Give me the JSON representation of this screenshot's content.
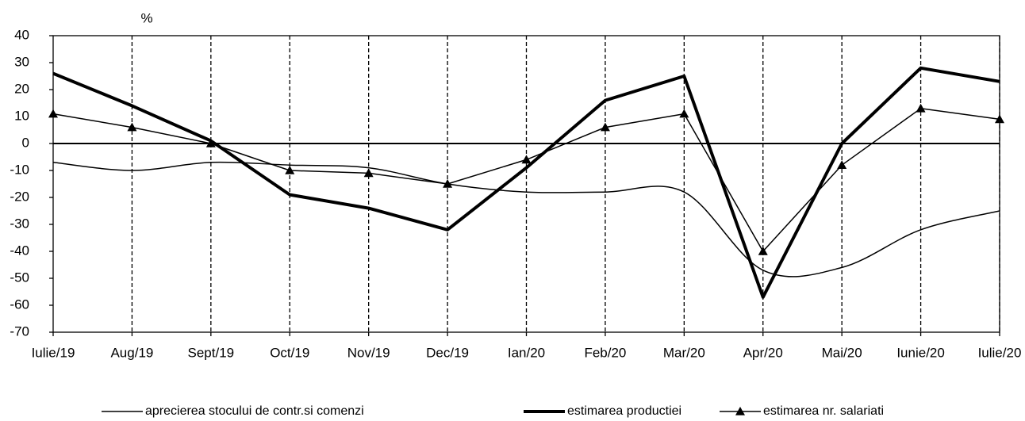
{
  "chart_data": {
    "type": "line",
    "y_label": "%",
    "categories": [
      "Iulie/19",
      "Aug/19",
      "Sept/19",
      "Oct/19",
      "Nov/19",
      "Dec/19",
      "Ian/20",
      "Feb/20",
      "Mar/20",
      "Apr/20",
      "Mai/20",
      "Iunie/20",
      "Iulie/20"
    ],
    "series": [
      {
        "name": "aprecierea stocului de contr.si comenzi",
        "color": "#000000",
        "smooth": true,
        "values": [
          -7,
          -10,
          -7,
          -8,
          -9,
          -15,
          -18,
          -18,
          -18,
          -47,
          -46,
          -32,
          -25
        ]
      },
      {
        "name": "estimarea productiei",
        "color": "#000000",
        "values": [
          26,
          14,
          1,
          -19,
          -24,
          -32,
          -9,
          16,
          25,
          -57,
          0,
          28,
          23
        ]
      },
      {
        "name": "estimarea nr. salariati",
        "color": "#000000",
        "marker": "triangle",
        "values": [
          11,
          6,
          0,
          -10,
          -11,
          -15,
          -6,
          6,
          11,
          -40,
          -8,
          13,
          9
        ]
      }
    ],
    "ylim": [
      -70,
      40
    ],
    "yticks": [
      -70,
      -60,
      -50,
      -40,
      -30,
      -20,
      -10,
      0,
      10,
      20,
      30,
      40
    ],
    "grid": "x-dashed"
  }
}
